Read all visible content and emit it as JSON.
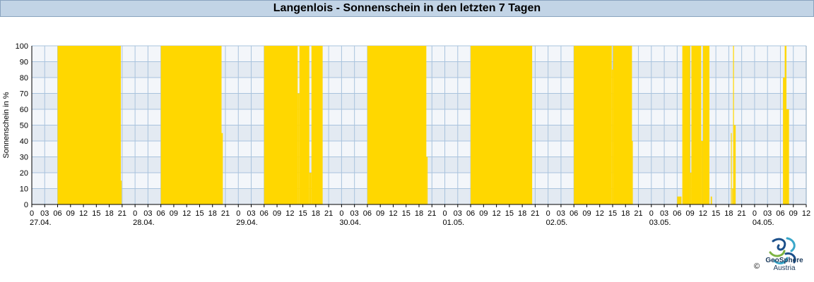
{
  "header": {
    "title": "Langenlois - Sonnenschein in den letzten 7 Tagen"
  },
  "chart_data": {
    "type": "area",
    "title": "Langenlois - Sonnenschein in den letzten 7 Tagen",
    "ylabel": "Sonnenschein in %",
    "xlabel": "",
    "ylim": [
      0,
      100
    ],
    "yticks": [
      0,
      10,
      20,
      30,
      40,
      50,
      60,
      70,
      80,
      90,
      100
    ],
    "x_hour_ticks": [
      "0",
      "03",
      "06",
      "09",
      "12",
      "15",
      "18",
      "21",
      "0",
      "03",
      "06",
      "09",
      "12",
      "15",
      "18",
      "21",
      "0",
      "03",
      "06",
      "09",
      "12",
      "15",
      "18",
      "21",
      "0",
      "03",
      "06",
      "09",
      "12",
      "15",
      "18",
      "21",
      "0",
      "03",
      "06",
      "09",
      "12",
      "15",
      "18",
      "21",
      "0",
      "03",
      "06",
      "09",
      "12",
      "15",
      "18",
      "21",
      "0",
      "03",
      "06",
      "09",
      "12",
      "15",
      "18",
      "21",
      "0",
      "03",
      "06",
      "09",
      "12"
    ],
    "x_date_labels": [
      "27.04.",
      "28.04.",
      "29.04.",
      "30.04.",
      "01.05.",
      "02.05.",
      "03.05.",
      "04.05."
    ],
    "grid": true,
    "series": [
      {
        "color": "#ffd700",
        "unit": "hours since 27.04. 00:00",
        "blocks": [
          {
            "start": 6.0,
            "end": 20.7,
            "value": 100
          },
          {
            "start": 20.7,
            "end": 20.9,
            "value": 15
          },
          {
            "start": 30.0,
            "end": 44.1,
            "value": 100
          },
          {
            "start": 44.1,
            "end": 44.4,
            "value": 45
          },
          {
            "start": 54.0,
            "end": 61.8,
            "value": 100
          },
          {
            "start": 61.8,
            "end": 62.2,
            "value": 70
          },
          {
            "start": 62.2,
            "end": 64.5,
            "value": 100
          },
          {
            "start": 64.5,
            "end": 65.0,
            "value": 20
          },
          {
            "start": 65.0,
            "end": 67.6,
            "value": 100
          },
          {
            "start": 78.0,
            "end": 91.7,
            "value": 100
          },
          {
            "start": 91.7,
            "end": 92.0,
            "value": 30
          },
          {
            "start": 102.0,
            "end": 116.3,
            "value": 100
          },
          {
            "start": 126.0,
            "end": 134.8,
            "value": 100
          },
          {
            "start": 134.8,
            "end": 135.1,
            "value": 85
          },
          {
            "start": 135.1,
            "end": 139.5,
            "value": 100
          },
          {
            "start": 139.5,
            "end": 139.7,
            "value": 40
          },
          {
            "start": 150.0,
            "end": 151.0,
            "value": 5
          },
          {
            "start": 151.2,
            "end": 153.0,
            "value": 100
          },
          {
            "start": 153.0,
            "end": 153.3,
            "value": 20
          },
          {
            "start": 153.3,
            "end": 155.6,
            "value": 100
          },
          {
            "start": 155.6,
            "end": 156.0,
            "value": 40
          },
          {
            "start": 156.0,
            "end": 157.5,
            "value": 100
          },
          {
            "start": 157.8,
            "end": 158.1,
            "value": 5
          },
          {
            "start": 162.5,
            "end": 162.7,
            "value": 45
          },
          {
            "start": 162.8,
            "end": 163.0,
            "value": 10
          },
          {
            "start": 163.0,
            "end": 163.2,
            "value": 100
          },
          {
            "start": 163.2,
            "end": 163.6,
            "value": 50
          },
          {
            "start": 174.6,
            "end": 175.0,
            "value": 80
          },
          {
            "start": 175.0,
            "end": 175.4,
            "value": 100
          },
          {
            "start": 175.4,
            "end": 176.0,
            "value": 60
          }
        ]
      }
    ]
  },
  "footer": {
    "logo_name": "GeoSphere",
    "logo_sub": "Austria",
    "copyright": "©"
  }
}
